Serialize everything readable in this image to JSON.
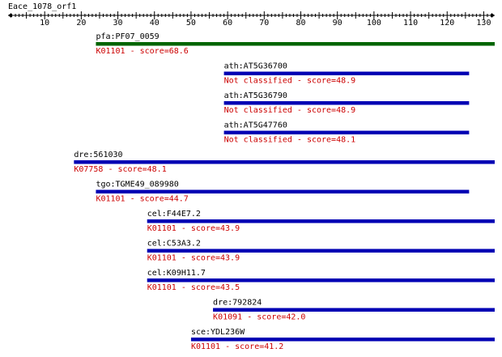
{
  "query": {
    "name": "Eace_1078_orf1",
    "axis_min": 0,
    "axis_max": 133,
    "tick_labels": [
      10,
      20,
      30,
      40,
      50,
      60,
      70,
      80,
      90,
      100,
      110,
      120,
      130
    ]
  },
  "colors": {
    "top_hit_bar": "#006400",
    "hit_bar": "#0000b4",
    "annotation_text": "#cc0000",
    "label_text": "#000000"
  },
  "hits": [
    {
      "name": "pfa:PF07_0059",
      "annotation": "K01101 - score=68.6",
      "start": 24,
      "end": 133,
      "top": true
    },
    {
      "name": "ath:AT5G36700",
      "annotation": "Not classified - score=48.9",
      "start": 59,
      "end": 126,
      "top": false
    },
    {
      "name": "ath:AT5G36790",
      "annotation": "Not classified - score=48.9",
      "start": 59,
      "end": 126,
      "top": false
    },
    {
      "name": "ath:AT5G47760",
      "annotation": "Not classified - score=48.1",
      "start": 59,
      "end": 126,
      "top": false
    },
    {
      "name": "dre:561030",
      "annotation": "K07758 - score=48.1",
      "start": 18,
      "end": 133,
      "top": false
    },
    {
      "name": "tgo:TGME49_089980",
      "annotation": "K01101 - score=44.7",
      "start": 24,
      "end": 126,
      "top": false
    },
    {
      "name": "cel:F44E7.2",
      "annotation": "K01101 - score=43.9",
      "start": 38,
      "end": 133,
      "top": false
    },
    {
      "name": "cel:C53A3.2",
      "annotation": "K01101 - score=43.9",
      "start": 38,
      "end": 133,
      "top": false
    },
    {
      "name": "cel:K09H11.7",
      "annotation": "K01101 - score=43.5",
      "start": 38,
      "end": 133,
      "top": false
    },
    {
      "name": "dre:792824",
      "annotation": "K01091 - score=42.0",
      "start": 56,
      "end": 133,
      "top": false
    },
    {
      "name": "sce:YDL236W",
      "annotation": "K01101 - score=41.2",
      "start": 50,
      "end": 133,
      "top": false
    }
  ]
}
